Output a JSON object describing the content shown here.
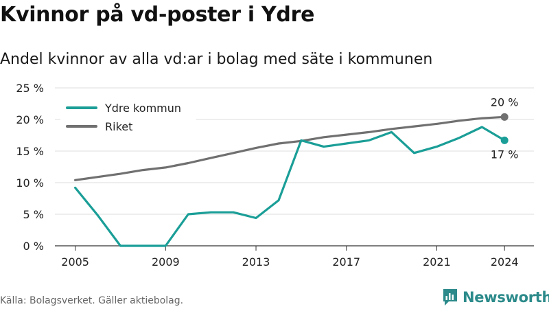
{
  "title": "Kvinnor på vd-poster i Ydre",
  "subtitle": "Andel kvinnor av alla vd:ar i bolag med säte i kommunen",
  "source": "Källa: Bolagsverket. Gäller aktiebolag.",
  "brand": "Newsworthy",
  "colors": {
    "ydre": "#1a9e97",
    "riket": "#707070",
    "grid": "#dddddd",
    "axis": "#333333",
    "brand": "#2c8a8a"
  },
  "chart_data": {
    "type": "line",
    "x": [
      2005,
      2006,
      2007,
      2008,
      2009,
      2010,
      2011,
      2012,
      2013,
      2014,
      2015,
      2016,
      2017,
      2018,
      2019,
      2020,
      2021,
      2022,
      2023,
      2024
    ],
    "x_ticks": [
      "2005",
      "2009",
      "2013",
      "2017",
      "2021",
      "2024"
    ],
    "y_ticks": [
      "0 %",
      "5 %",
      "10 %",
      "15 %",
      "20 %",
      "25 %"
    ],
    "ylim": [
      0,
      25
    ],
    "grid": true,
    "legend_position": "top-left",
    "series": [
      {
        "name": "Ydre kommun",
        "color": "#1a9e97",
        "values": [
          9.2,
          4.8,
          0,
          0,
          0,
          5.0,
          5.3,
          5.3,
          4.4,
          7.2,
          16.7,
          15.7,
          16.2,
          16.7,
          18.0,
          14.7,
          15.7,
          17.1,
          18.8,
          16.7
        ],
        "end_label": "17 %"
      },
      {
        "name": "Riket",
        "color": "#707070",
        "values": [
          10.4,
          10.9,
          11.4,
          12.0,
          12.4,
          13.1,
          13.9,
          14.7,
          15.5,
          16.2,
          16.6,
          17.2,
          17.6,
          18.0,
          18.5,
          18.9,
          19.3,
          19.8,
          20.2,
          20.4
        ],
        "end_label": "20 %"
      }
    ]
  }
}
